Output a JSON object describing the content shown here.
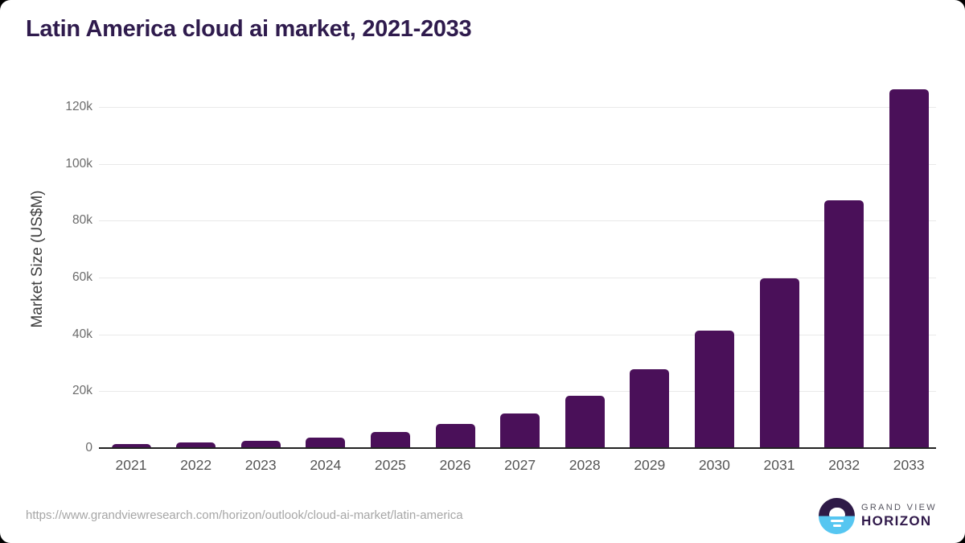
{
  "title": "Latin America cloud ai market, 2021-2033",
  "chart_data": {
    "type": "bar",
    "title": "Latin America cloud ai market, 2021-2033",
    "xlabel": "",
    "ylabel": "Market Size (US$M)",
    "categories": [
      "2021",
      "2022",
      "2023",
      "2024",
      "2025",
      "2026",
      "2027",
      "2028",
      "2029",
      "2030",
      "2031",
      "2032",
      "2033"
    ],
    "values": [
      1300,
      1900,
      2500,
      3600,
      5600,
      8400,
      12200,
      18300,
      27800,
      41300,
      59800,
      87300,
      126300
    ],
    "yticks": [
      {
        "value": 0,
        "label": "0"
      },
      {
        "value": 20000,
        "label": "20k"
      },
      {
        "value": 40000,
        "label": "40k"
      },
      {
        "value": 60000,
        "label": "60k"
      },
      {
        "value": 80000,
        "label": "80k"
      },
      {
        "value": 100000,
        "label": "100k"
      },
      {
        "value": 120000,
        "label": "120k"
      }
    ],
    "ylim": [
      0,
      130000
    ],
    "grid": true,
    "legend": "none",
    "bar_color": "#4a1059",
    "units": "US$M"
  },
  "footer": {
    "source_url": "https://www.grandviewresearch.com/horizon/outlook/cloud-ai-market/latin-america",
    "brand_line1": "GRAND VIEW",
    "brand_line2": "HORIZON"
  },
  "colors": {
    "title": "#2f1b4d",
    "bar": "#4a1059",
    "axis_line": "#222222",
    "gridline": "#e9e9e9",
    "tick_text": "#6b6b6b",
    "logo_blue": "#56c6f1",
    "logo_navy": "#2e1a47"
  }
}
